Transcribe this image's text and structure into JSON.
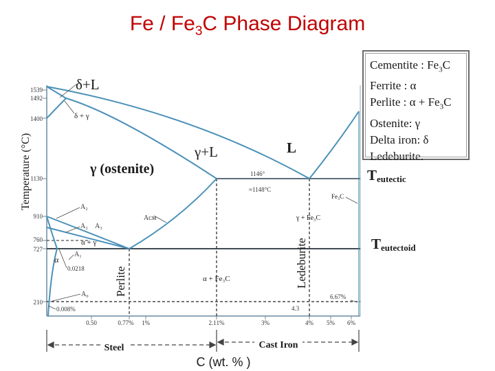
{
  "title": {
    "main": "Fe / Fe",
    "sub": "3",
    "rest": "C Phase Diagram"
  },
  "axes": {
    "ylabel": "Temperature (°C)",
    "xlabel": "C (wt. % )",
    "y_ticks": [
      "1539",
      "1492",
      "1400",
      "1130",
      "910",
      "760",
      "727",
      "210"
    ],
    "x_ticks": [
      "0.50",
      "0.77%",
      "1%",
      "2.11%",
      "3%",
      "4%",
      "5%",
      "6%"
    ]
  },
  "regions": {
    "delta_l": "δ+L",
    "delta_gamma": "δ + γ",
    "gamma_l": "γ+L",
    "liquid": "L",
    "austenite": "γ (ostenite)",
    "fe3c_small": "Fe₃C",
    "gamma_fe3c": "γ + Fe₃C",
    "alpha_gamma": "α + γ",
    "alpha": "α",
    "alpha_fe3c": "α + Fe₃C",
    "perlite": "Perlite",
    "ledeburite": "Ledeburite"
  },
  "annotations": {
    "t1146": "1146°",
    "t1148": "≈1148°C",
    "a2_top": "A₂",
    "a2": "A₂",
    "a3": "A₃",
    "a1": "A₁",
    "a0": "A₀",
    "acm": "Aᴄᴍ",
    "c00218": "0.0218",
    "c0008": "0.008%",
    "c43": "4.3",
    "c667": "6.67%"
  },
  "side_labels": {
    "eutectic_base": "T",
    "eutectic_sub": "eutectic",
    "eutectoid_base": "T",
    "eutectoid_sub": "eutectoid"
  },
  "ranges": {
    "steel": "Steel",
    "cast_iron": "Cast Iron"
  },
  "legend": [
    {
      "label": "Cementite : Fe",
      "sub": "3",
      "tail": "C"
    },
    {
      "label": "Ferrite : α",
      "sub": "",
      "tail": ""
    },
    {
      "label": "Perlite : α + Fe",
      "sub": "3",
      "tail": "C"
    },
    {
      "label": "Ostenite: γ",
      "sub": "",
      "tail": ""
    },
    {
      "label": "Delta iron: δ",
      "sub": "",
      "tail": ""
    },
    {
      "label": "Ledeburite.",
      "sub": "",
      "tail": ""
    }
  ],
  "colors": {
    "title": "#c00000",
    "phase_line": "#4a90b8",
    "axis": "#6c8aa0",
    "text": "#1a1a1a"
  }
}
